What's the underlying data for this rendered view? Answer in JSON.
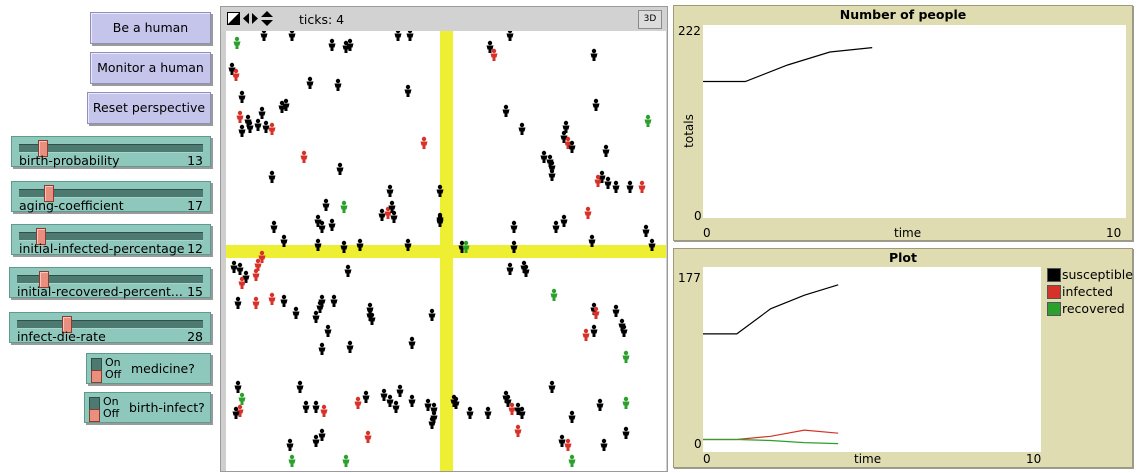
{
  "buttons": {
    "be_human": "Be a human",
    "monitor_human": "Monitor a human",
    "reset_perspective": "Reset perspective"
  },
  "sliders": [
    {
      "label": "birth-probability",
      "value": "13",
      "position": 0.13
    },
    {
      "label": "aging-coefficient",
      "value": "17",
      "position": 0.17
    },
    {
      "label": "initial-infected-percentage",
      "value": "12",
      "position": 0.12
    },
    {
      "label": "initial-recovered-percent...",
      "value": "15",
      "position": 0.15
    },
    {
      "label": "infect-die-rate",
      "value": "28",
      "position": 0.28
    }
  ],
  "switches": [
    {
      "label": "medicine?",
      "on_text": "On",
      "off_text": "Off",
      "state": "off"
    },
    {
      "label": "birth-infect?",
      "on_text": "On",
      "off_text": "Off",
      "state": "off"
    }
  ],
  "view": {
    "ticks_label": "ticks: 4",
    "btn_3d": "3D",
    "road_color": "#eeee33",
    "icons": [
      "edit-icon",
      "left-right-arrows-icon",
      "up-down-arrows-icon"
    ]
  },
  "colors": {
    "susceptible": "#000000",
    "infected": "#d73229",
    "recovered": "#2ca02c",
    "button": "#c5c5ec",
    "widget": "#8ec7bb",
    "plot_bg": "#dfdcb2"
  },
  "chart_data": [
    {
      "type": "line",
      "title": "Number of people",
      "xlabel": "time",
      "ylabel": "totals",
      "xlim": [
        0,
        10
      ],
      "ylim": [
        0,
        222
      ],
      "x_ticks": [
        "0",
        "10"
      ],
      "y_ticks": [
        "0",
        "222"
      ],
      "series": [
        {
          "color": "#000000",
          "x": [
            0,
            1,
            2,
            3,
            4
          ],
          "y": [
            157,
            157,
            176,
            191,
            196
          ]
        }
      ]
    },
    {
      "type": "line",
      "title": "Plot",
      "xlabel": "time",
      "ylabel": "",
      "xlim": [
        0,
        10
      ],
      "ylim": [
        0,
        177
      ],
      "x_ticks": [
        "0",
        "10"
      ],
      "y_ticks": [
        "0",
        "177"
      ],
      "legend_position": "right",
      "series": [
        {
          "name": "susceptible",
          "color": "#000000",
          "x": [
            0,
            1,
            2,
            3,
            4
          ],
          "y": [
            113,
            113,
            137,
            150,
            160
          ]
        },
        {
          "name": "infected",
          "color": "#d73229",
          "x": [
            0,
            1,
            2,
            3,
            4
          ],
          "y": [
            12,
            12,
            15,
            21,
            18
          ]
        },
        {
          "name": "recovered",
          "color": "#2ca02c",
          "x": [
            0,
            1,
            2,
            3,
            4
          ],
          "y": [
            12,
            12,
            11,
            9,
            8
          ]
        }
      ]
    }
  ]
}
